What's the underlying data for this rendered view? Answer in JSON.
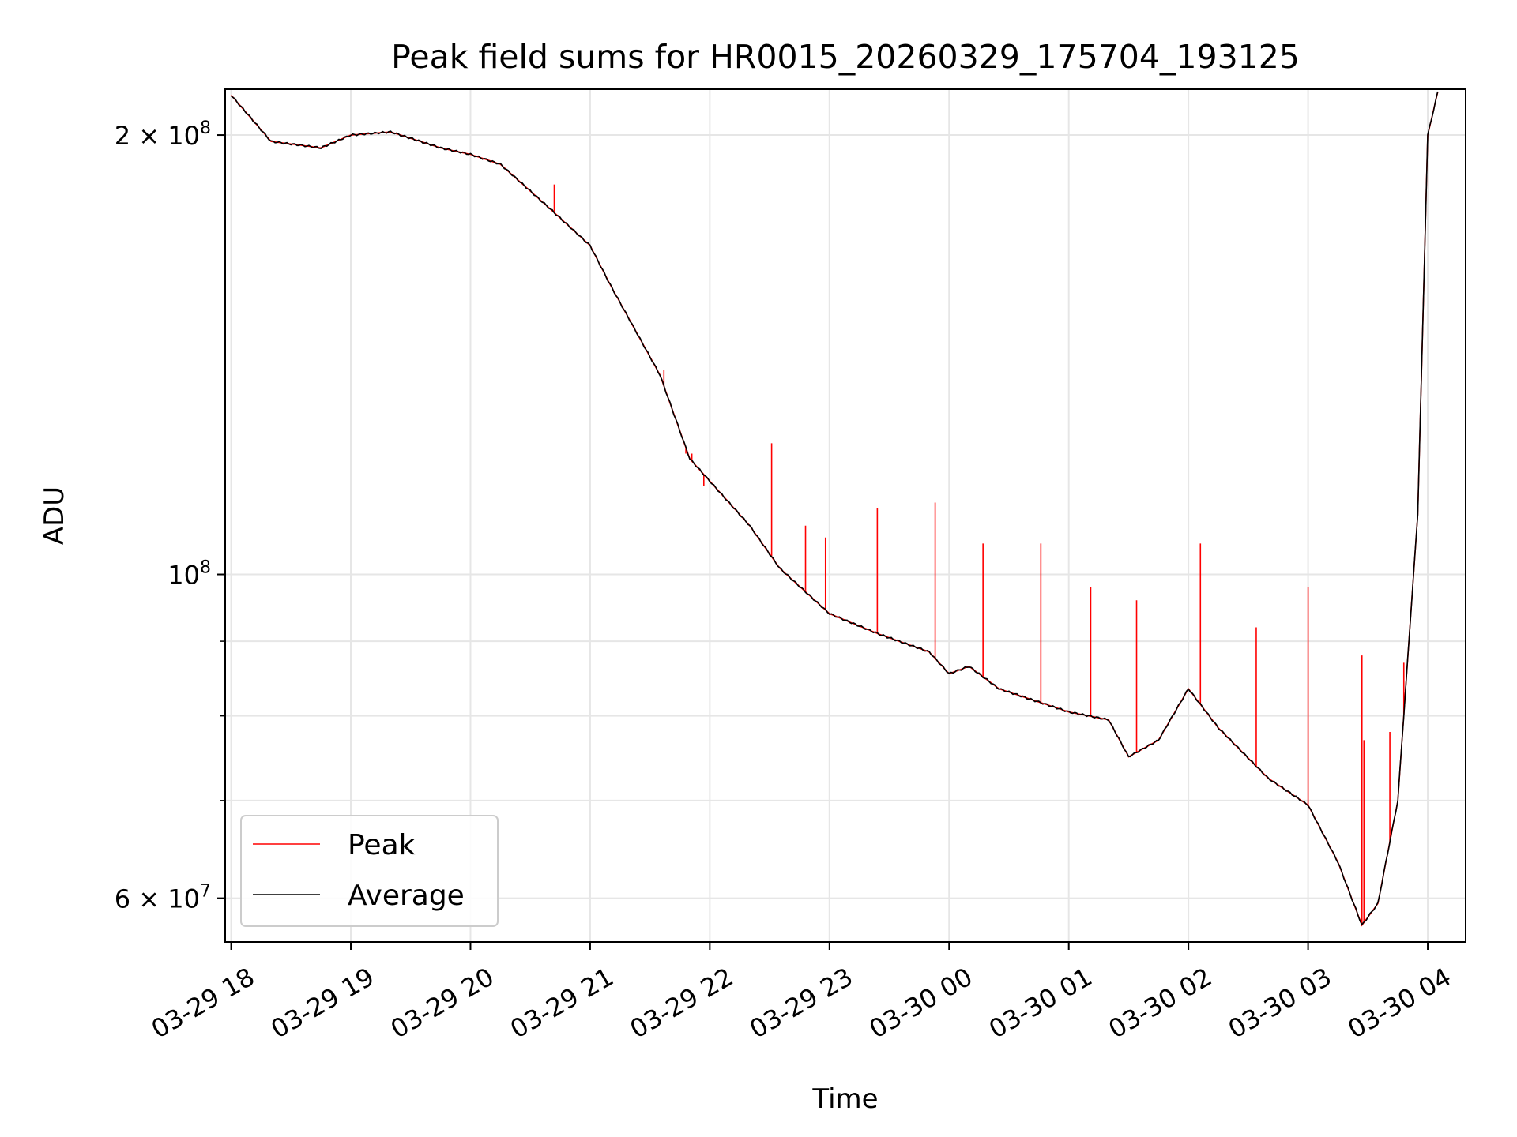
{
  "chart_data": {
    "type": "line",
    "title": "Peak field sums for HR0015_20260329_175704_193125",
    "xlabel": "Time",
    "ylabel": "ADU",
    "yscale": "log",
    "ylim": [
      56000000,
      215000000
    ],
    "xlim": [
      "03-29 17:57",
      "03-30 04:19"
    ],
    "grid": true,
    "legend": "bottom-left",
    "x_ticks": [
      "03-29 18",
      "03-29 19",
      "03-29 20",
      "03-29 21",
      "03-29 22",
      "03-29 23",
      "03-30 00",
      "03-30 01",
      "03-30 02",
      "03-30 03",
      "03-30 04"
    ],
    "y_ticks": [
      {
        "value": 200000000,
        "mantissa": "2",
        "exp": "8"
      },
      {
        "value": 100000000,
        "mantissa": "",
        "exp": "8"
      },
      {
        "value": 60000000,
        "mantissa": "6",
        "exp": "7"
      }
    ],
    "y_minor": [
      70000000,
      80000000,
      90000000
    ],
    "series": [
      {
        "name": "Average",
        "color": "#000000",
        "points": [
          [
            "03-29 18:00",
            213000000
          ],
          [
            "03-29 18:20",
            198000000
          ],
          [
            "03-29 18:45",
            196000000
          ],
          [
            "03-29 19:00",
            200000000
          ],
          [
            "03-29 19:20",
            201000000
          ],
          [
            "03-29 19:45",
            196000000
          ],
          [
            "03-29 20:00",
            194000000
          ],
          [
            "03-29 20:15",
            191000000
          ],
          [
            "03-29 20:40",
            178000000
          ],
          [
            "03-29 21:00",
            168000000
          ],
          [
            "03-29 21:10",
            158000000
          ],
          [
            "03-29 21:35",
            137000000
          ],
          [
            "03-29 21:50",
            120000000
          ],
          [
            "03-29 22:20",
            108000000
          ],
          [
            "03-29 22:35",
            101000000
          ],
          [
            "03-29 23:00",
            94000000
          ],
          [
            "03-29 23:25",
            91000000
          ],
          [
            "03-29 23:50",
            88500000
          ],
          [
            "03-30 00:00",
            85500000
          ],
          [
            "03-30 00:10",
            86500000
          ],
          [
            "03-30 00:25",
            83500000
          ],
          [
            "03-30 01:00",
            80500000
          ],
          [
            "03-30 01:20",
            79500000
          ],
          [
            "03-30 01:30",
            75000000
          ],
          [
            "03-30 01:45",
            77000000
          ],
          [
            "03-30 02:00",
            83500000
          ],
          [
            "03-30 02:15",
            78500000
          ],
          [
            "03-30 02:40",
            72500000
          ],
          [
            "03-30 03:00",
            69500000
          ],
          [
            "03-30 03:15",
            63500000
          ],
          [
            "03-30 03:27",
            57500000
          ],
          [
            "03-30 03:35",
            59500000
          ],
          [
            "03-30 03:45",
            70000000
          ],
          [
            "03-30 03:55",
            110000000
          ],
          [
            "03-30 04:00",
            200000000
          ],
          [
            "03-30 04:05",
            214000000
          ]
        ]
      },
      {
        "name": "Peak",
        "color": "#ff0000",
        "spikes": [
          [
            "03-29 20:42",
            185000000
          ],
          [
            "03-29 21:37",
            138000000
          ],
          [
            "03-29 21:48",
            121000000
          ],
          [
            "03-29 21:51",
            121000000
          ],
          [
            "03-29 21:57",
            115000000
          ],
          [
            "03-29 22:31",
            123000000
          ],
          [
            "03-29 22:48",
            108000000
          ],
          [
            "03-29 22:58",
            106000000
          ],
          [
            "03-29 23:24",
            111000000
          ],
          [
            "03-29 23:53",
            112000000
          ],
          [
            "03-30 00:17",
            105000000
          ],
          [
            "03-30 00:46",
            105000000
          ],
          [
            "03-30 01:11",
            98000000
          ],
          [
            "03-30 01:34",
            96000000
          ],
          [
            "03-30 02:06",
            105000000
          ],
          [
            "03-30 02:34",
            92000000
          ],
          [
            "03-30 03:00",
            98000000
          ],
          [
            "03-30 03:27",
            88000000
          ],
          [
            "03-30 03:28",
            77000000
          ],
          [
            "03-30 03:41",
            78000000
          ],
          [
            "03-30 03:48",
            87000000
          ]
        ]
      }
    ]
  }
}
